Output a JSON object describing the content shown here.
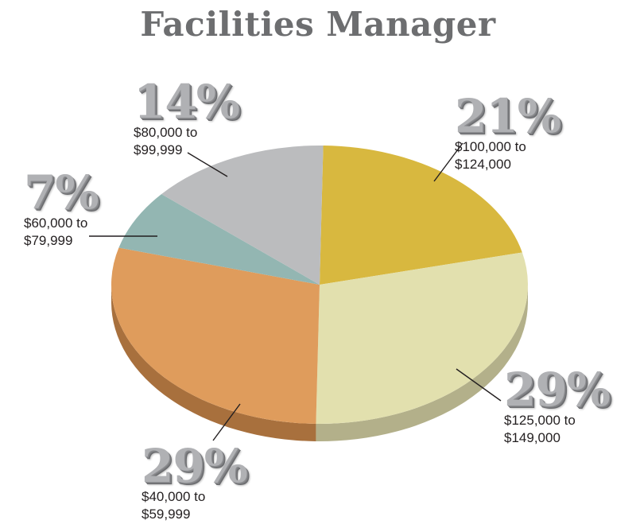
{
  "chart_data": {
    "type": "pie",
    "title": "Facilities Manager",
    "slices": [
      {
        "percent": 21,
        "value": 21,
        "label": "$100,000 to $124,000",
        "label_line1": "$100,000 to",
        "label_line2": "$124,000",
        "percent_text": "21%",
        "color": "#d8b83f",
        "side_color": "#a98c24"
      },
      {
        "percent": 29,
        "value": 29,
        "label": "$125,000 to $149,000",
        "label_line1": "$125,000 to",
        "label_line2": "$149,000",
        "percent_text": "29%",
        "color": "#e2e0ae",
        "side_color": "#b3b08a"
      },
      {
        "percent": 29,
        "value": 29,
        "label": "$40,000 to $59,999",
        "label_line1": "$40,000 to",
        "label_line2": "$59,999",
        "percent_text": "29%",
        "color": "#df9c5c",
        "side_color": "#a8703d"
      },
      {
        "percent": 7,
        "value": 7,
        "label": "$60,000 to $79,999",
        "label_line1": "$60,000 to",
        "label_line2": "$79,999",
        "percent_text": "7%",
        "color": "#93b6b2",
        "side_color": "#6c8f8b"
      },
      {
        "percent": 14,
        "value": 14,
        "label": "$80,000 to $99,999",
        "label_line1": "$80,000 to",
        "label_line2": "$99,999",
        "percent_text": "14%",
        "color": "#bbbcbe",
        "side_color": "#8e8f91"
      }
    ]
  }
}
